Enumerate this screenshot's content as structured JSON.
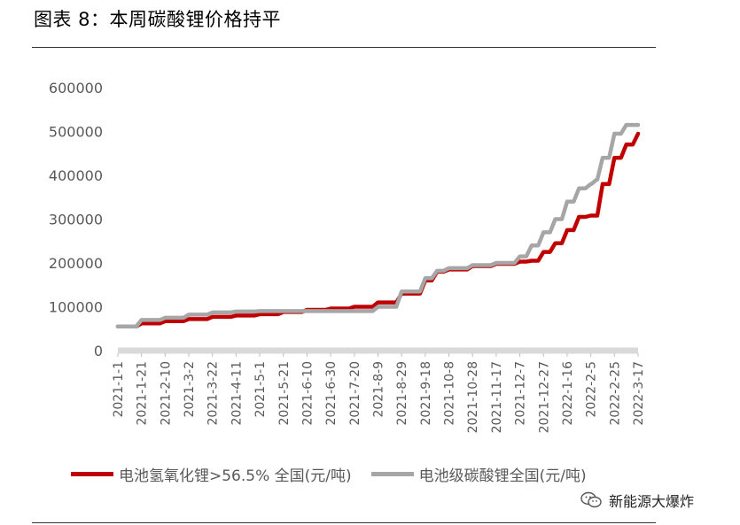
{
  "header": {
    "title": "图表 8：本周碳酸锂价格持平"
  },
  "watermark": {
    "text": "新能源大爆炸",
    "icon": "wechat-icon"
  },
  "chart_data": {
    "type": "line",
    "ylim": [
      0,
      600000
    ],
    "yticks": [
      "0",
      "100000",
      "200000",
      "300000",
      "400000",
      "500000",
      "600000"
    ],
    "ytick_values": [
      0,
      100000,
      200000,
      300000,
      400000,
      500000,
      600000
    ],
    "xticks": [
      "2021-1-1",
      "2021-1-21",
      "2021-2-10",
      "2021-3-2",
      "2021-3-22",
      "2021-4-11",
      "2021-5-1",
      "2021-5-21",
      "2021-6-10",
      "2021-6-30",
      "2021-7-20",
      "2021-8-9",
      "2021-8-29",
      "2021-9-18",
      "2021-10-8",
      "2021-10-28",
      "2021-11-17",
      "2021-12-7",
      "2021-12-27",
      "2022-1-16",
      "2022-2-5",
      "2022-2-25",
      "2022-3-17"
    ],
    "xrange": [
      "2021-1-1",
      "2022-3-17"
    ],
    "legend_position": "bottom",
    "series": [
      {
        "name": "电池氢氧化锂>56.5% 全国(元/吨)",
        "color": "#c00000",
        "points": [
          [
            "2021-1-1",
            55000
          ],
          [
            "2021-1-21",
            62000
          ],
          [
            "2021-2-10",
            67000
          ],
          [
            "2021-3-2",
            72000
          ],
          [
            "2021-3-22",
            77000
          ],
          [
            "2021-4-11",
            80000
          ],
          [
            "2021-5-1",
            83000
          ],
          [
            "2021-5-21",
            88000
          ],
          [
            "2021-6-10",
            93000
          ],
          [
            "2021-6-30",
            96000
          ],
          [
            "2021-7-20",
            100000
          ],
          [
            "2021-8-9",
            110000
          ],
          [
            "2021-8-29",
            130000
          ],
          [
            "2021-9-18",
            160000
          ],
          [
            "2021-9-28",
            180000
          ],
          [
            "2021-10-8",
            185000
          ],
          [
            "2021-10-28",
            193000
          ],
          [
            "2021-11-17",
            198000
          ],
          [
            "2021-12-7",
            203000
          ],
          [
            "2021-12-17",
            205000
          ],
          [
            "2021-12-27",
            225000
          ],
          [
            "2022-1-6",
            245000
          ],
          [
            "2022-1-16",
            275000
          ],
          [
            "2022-1-26",
            305000
          ],
          [
            "2022-2-5",
            308000
          ],
          [
            "2022-2-10",
            308000
          ],
          [
            "2022-2-15",
            380000
          ],
          [
            "2022-2-25",
            440000
          ],
          [
            "2022-3-7",
            470000
          ],
          [
            "2022-3-17",
            495000
          ]
        ]
      },
      {
        "name": "电池级碳酸锂全国(元/吨)",
        "color": "#a6a6a6",
        "points": [
          [
            "2021-1-1",
            55000
          ],
          [
            "2021-1-21",
            70000
          ],
          [
            "2021-2-10",
            75000
          ],
          [
            "2021-3-2",
            82000
          ],
          [
            "2021-3-22",
            87000
          ],
          [
            "2021-4-11",
            89000
          ],
          [
            "2021-5-1",
            90000
          ],
          [
            "2021-5-21",
            90000
          ],
          [
            "2021-6-10",
            90000
          ],
          [
            "2021-6-30",
            90000
          ],
          [
            "2021-7-20",
            90000
          ],
          [
            "2021-8-9",
            100000
          ],
          [
            "2021-8-29",
            135000
          ],
          [
            "2021-9-18",
            165000
          ],
          [
            "2021-9-28",
            182000
          ],
          [
            "2021-10-8",
            188000
          ],
          [
            "2021-10-28",
            195000
          ],
          [
            "2021-11-17",
            200000
          ],
          [
            "2021-12-7",
            215000
          ],
          [
            "2021-12-17",
            240000
          ],
          [
            "2021-12-27",
            270000
          ],
          [
            "2022-1-6",
            300000
          ],
          [
            "2022-1-16",
            340000
          ],
          [
            "2022-1-26",
            370000
          ],
          [
            "2022-2-5",
            380000
          ],
          [
            "2022-2-10",
            390000
          ],
          [
            "2022-2-15",
            440000
          ],
          [
            "2022-2-25",
            495000
          ],
          [
            "2022-3-7",
            515000
          ],
          [
            "2022-3-17",
            515000
          ]
        ]
      }
    ]
  }
}
